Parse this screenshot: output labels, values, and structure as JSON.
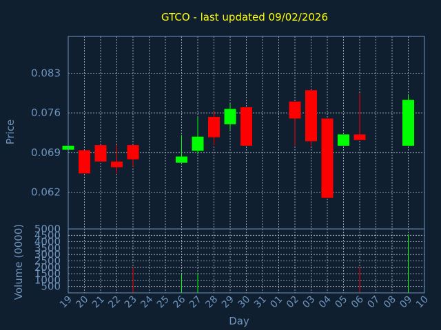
{
  "chart_data": {
    "type": "candlestick",
    "title": "GTCO - last updated 09/02/2026",
    "xlabel": "Day",
    "ylabel_price": "Price",
    "ylabel_volume": "Volume (0000)",
    "x_ticks": [
      "19",
      "20",
      "21",
      "22",
      "23",
      "24",
      "25",
      "26",
      "27",
      "28",
      "29",
      "30",
      "31",
      "01",
      "02",
      "03",
      "04",
      "05",
      "06",
      "07",
      "08",
      "09",
      "10"
    ],
    "price_ylim": [
      0.0555,
      0.0895
    ],
    "price_yticks": [
      "0.062",
      "0.069",
      "0.076",
      "0.083"
    ],
    "price_ytick_values": [
      0.062,
      0.069,
      0.076,
      0.083
    ],
    "volume_ylim": [
      0,
      5000
    ],
    "volume_yticks": [
      "500",
      "1000",
      "1500",
      "2000",
      "2500",
      "3000",
      "3500",
      "4000",
      "4500",
      "5000"
    ],
    "volume_ytick_values": [
      500,
      1000,
      1500,
      2000,
      2500,
      3000,
      3500,
      4000,
      4500,
      5000
    ],
    "up_color": "#00ff00",
    "down_color": "#ff0000",
    "grid": true,
    "candles": [
      {
        "day": "19",
        "open": 0.0695,
        "close": 0.0702,
        "high": 0.0702,
        "low": 0.0695,
        "volume": 0
      },
      {
        "day": "20",
        "open": 0.0694,
        "close": 0.0653,
        "high": 0.0694,
        "low": 0.0653,
        "volume": 0
      },
      {
        "day": "21",
        "open": 0.0703,
        "close": 0.0674,
        "high": 0.0703,
        "low": 0.0674,
        "volume": 0
      },
      {
        "day": "22",
        "open": 0.0674,
        "close": 0.0664,
        "high": 0.0703,
        "low": 0.0653,
        "volume": 0
      },
      {
        "day": "23",
        "open": 0.0703,
        "close": 0.0678,
        "high": 0.0703,
        "low": 0.0665,
        "volume": 2000
      },
      {
        "day": "26",
        "open": 0.0672,
        "close": 0.0683,
        "high": 0.0721,
        "low": 0.0672,
        "volume": 1450
      },
      {
        "day": "27",
        "open": 0.0693,
        "close": 0.0718,
        "high": 0.0753,
        "low": 0.0687,
        "volume": 1500
      },
      {
        "day": "28",
        "open": 0.0753,
        "close": 0.0717,
        "high": 0.0763,
        "low": 0.0703,
        "volume": 0
      },
      {
        "day": "29",
        "open": 0.074,
        "close": 0.0767,
        "high": 0.0777,
        "low": 0.073,
        "volume": 0
      },
      {
        "day": "30",
        "open": 0.077,
        "close": 0.0702,
        "high": 0.077,
        "low": 0.0702,
        "volume": 0
      },
      {
        "day": "02",
        "open": 0.078,
        "close": 0.075,
        "high": 0.078,
        "low": 0.0702,
        "volume": 0
      },
      {
        "day": "03",
        "open": 0.08,
        "close": 0.071,
        "high": 0.08,
        "low": 0.0702,
        "volume": 0
      },
      {
        "day": "04",
        "open": 0.075,
        "close": 0.061,
        "high": 0.075,
        "low": 0.061,
        "volume": 0
      },
      {
        "day": "05",
        "open": 0.0702,
        "close": 0.0722,
        "high": 0.0722,
        "low": 0.0702,
        "volume": 0
      },
      {
        "day": "06",
        "open": 0.0722,
        "close": 0.0712,
        "high": 0.0795,
        "low": 0.0712,
        "volume": 2000
      },
      {
        "day": "09",
        "open": 0.0702,
        "close": 0.0783,
        "high": 0.0792,
        "low": 0.0702,
        "volume": 4600
      }
    ]
  }
}
